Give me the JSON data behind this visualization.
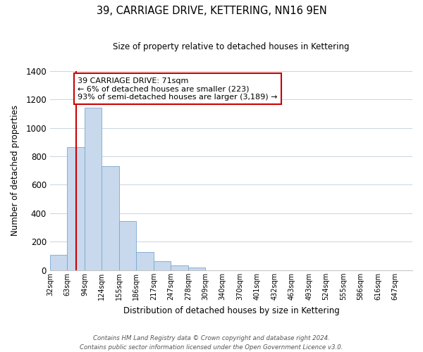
{
  "title": "39, CARRIAGE DRIVE, KETTERING, NN16 9EN",
  "subtitle": "Size of property relative to detached houses in Kettering",
  "xlabel": "Distribution of detached houses by size in Kettering",
  "ylabel": "Number of detached properties",
  "bar_labels": [
    "32sqm",
    "63sqm",
    "94sqm",
    "124sqm",
    "155sqm",
    "186sqm",
    "217sqm",
    "247sqm",
    "278sqm",
    "309sqm",
    "340sqm",
    "370sqm",
    "401sqm",
    "432sqm",
    "463sqm",
    "493sqm",
    "524sqm",
    "555sqm",
    "586sqm",
    "616sqm",
    "647sqm"
  ],
  "bar_values": [
    107,
    862,
    1140,
    730,
    345,
    130,
    62,
    32,
    20,
    0,
    0,
    0,
    0,
    0,
    0,
    0,
    0,
    0,
    0,
    0,
    0
  ],
  "bar_fill": "#c8d9ed",
  "bar_edge": "#7aa6ce",
  "vline_color": "#cc0000",
  "vline_x": 1.5,
  "ylim": [
    0,
    1400
  ],
  "yticks": [
    0,
    200,
    400,
    600,
    800,
    1000,
    1200,
    1400
  ],
  "annotation_title": "39 CARRIAGE DRIVE: 71sqm",
  "annotation_line1": "← 6% of detached houses are smaller (223)",
  "annotation_line2": "93% of semi-detached houses are larger (3,189) →",
  "footer_line1": "Contains HM Land Registry data © Crown copyright and database right 2024.",
  "footer_line2": "Contains public sector information licensed under the Open Government Licence v3.0.",
  "background_color": "#ffffff",
  "grid_color": "#c8d4e0"
}
